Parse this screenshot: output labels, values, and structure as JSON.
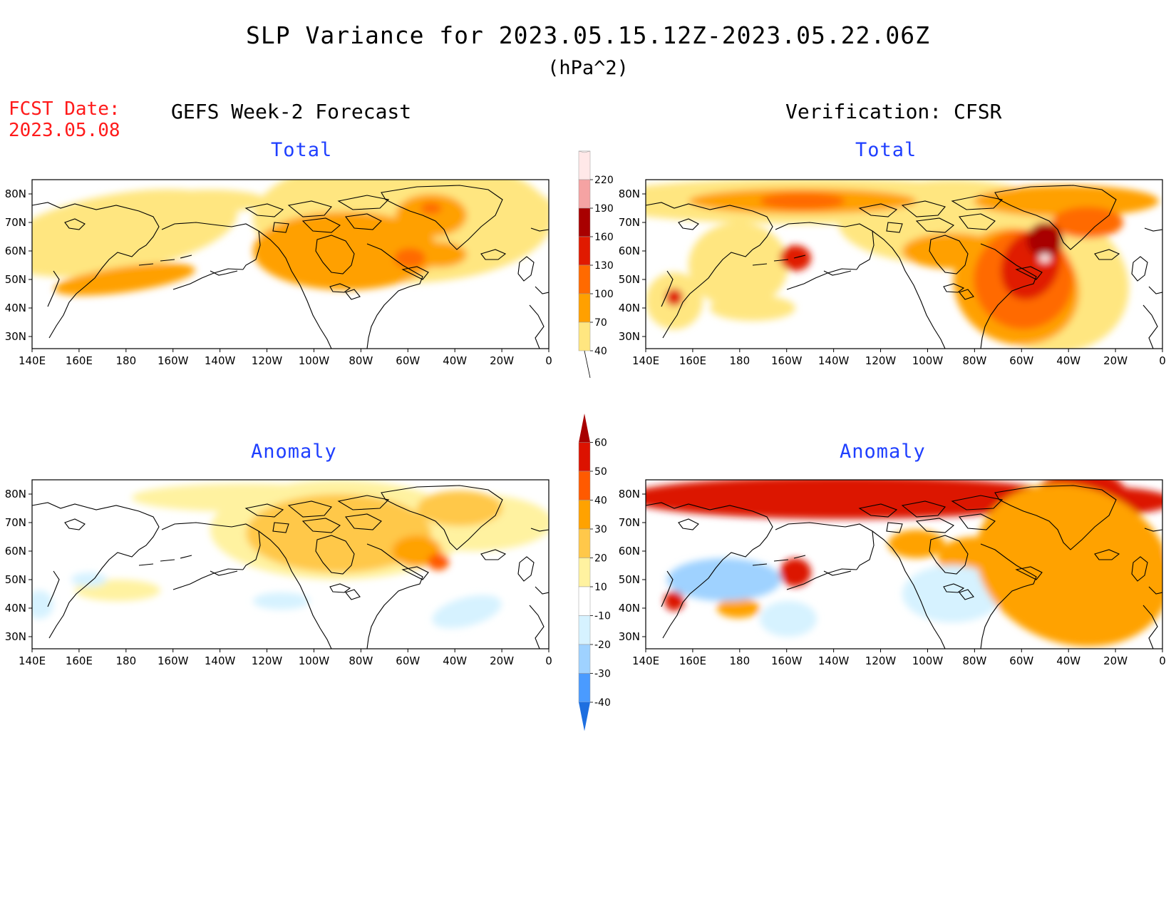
{
  "header": {
    "title": "SLP Variance for 2023.05.15.12Z-2023.05.22.06Z",
    "units": "(hPa^2)",
    "fcst_label": "FCST Date:",
    "fcst_date": "2023.05.08",
    "left_heading": "GEFS Week-2 Forecast",
    "right_heading": "Verification: CFSR"
  },
  "panels": [
    {
      "subtitle": "Total"
    },
    {
      "subtitle": "Total"
    },
    {
      "subtitle": "Anomaly"
    },
    {
      "subtitle": "Anomaly"
    }
  ],
  "axes": {
    "lon_labels": [
      "140E",
      "160E",
      "180",
      "160W",
      "140W",
      "120W",
      "100W",
      "80W",
      "60W",
      "40W",
      "20W",
      "0"
    ],
    "lat_labels": [
      "80N",
      "70N",
      "60N",
      "50N",
      "40N",
      "30N"
    ]
  },
  "colorbar_total": {
    "levels": [
      "220",
      "190",
      "160",
      "130",
      "100",
      "70",
      "40"
    ],
    "colors": [
      "#ffe8e8",
      "#f5a3a3",
      "#a80000",
      "#e01a00",
      "#ff6a00",
      "#ffa000",
      "#ffe680"
    ]
  },
  "colorbar_anomaly": {
    "levels": [
      "60",
      "50",
      "40",
      "30",
      "20",
      "10",
      "-10",
      "-20",
      "-30",
      "-40"
    ],
    "colors": [
      "#a80000",
      "#dc1200",
      "#ff5a00",
      "#ffa200",
      "#ffc84a",
      "#fff2a0",
      "#ffffff",
      "#d6f2ff",
      "#9fd2ff",
      "#4a9bff",
      "#1e6fe0"
    ]
  },
  "icons": [
    "map-coastline-icon"
  ]
}
